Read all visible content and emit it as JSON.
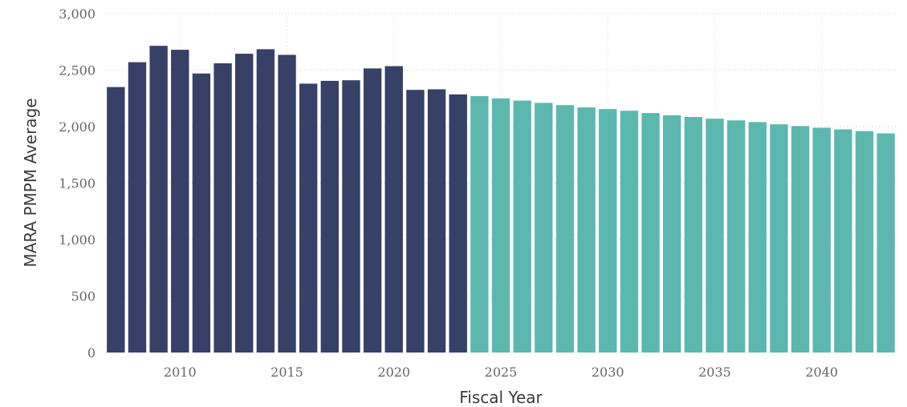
{
  "chart_data": {
    "type": "bar",
    "xlabel": "Fiscal Year",
    "ylabel": "MARA PMPM Average",
    "ylim": [
      0,
      3000
    ],
    "yticks": [
      0,
      500,
      1000,
      1500,
      2000,
      2500,
      3000
    ],
    "ytick_labels": [
      "0",
      "500",
      "1,000",
      "1,500",
      "2,000",
      "2,500",
      "3,000"
    ],
    "xticks": [
      2010,
      2015,
      2020,
      2025,
      2030,
      2035,
      2040
    ],
    "xtick_labels": [
      "2010",
      "2015",
      "2020",
      "2025",
      "2030",
      "2035",
      "2040"
    ],
    "grid": "dotted horizontal",
    "series": [
      {
        "color": "#374066",
        "x": [
          2007,
          2008,
          2009,
          2010,
          2011,
          2012,
          2013,
          2014,
          2015,
          2016,
          2017,
          2018,
          2019,
          2020,
          2021,
          2022,
          2023
        ],
        "values": [
          2350,
          2570,
          2715,
          2680,
          2470,
          2560,
          2645,
          2685,
          2635,
          2380,
          2405,
          2410,
          2515,
          2535,
          2325,
          2330,
          2285
        ]
      },
      {
        "color": "#5cb8af",
        "x": [
          2024,
          2025,
          2026,
          2027,
          2028,
          2029,
          2030,
          2031,
          2032,
          2033,
          2034,
          2035,
          2036,
          2037,
          2038,
          2039,
          2040,
          2041,
          2042,
          2043
        ],
        "values": [
          2270,
          2250,
          2230,
          2210,
          2190,
          2170,
          2155,
          2140,
          2120,
          2100,
          2085,
          2070,
          2055,
          2040,
          2020,
          2005,
          1990,
          1975,
          1960,
          1940
        ]
      }
    ]
  }
}
